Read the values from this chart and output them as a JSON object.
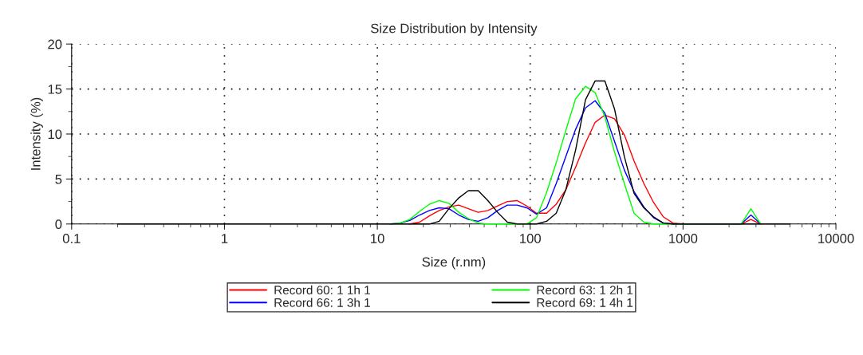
{
  "chart_data": {
    "type": "line",
    "title": "Size Distribution by Intensity",
    "xlabel": "Size (r.nm)",
    "ylabel": "Intensity (%)",
    "x": [
      0.2,
      0.232,
      0.268,
      0.311,
      0.36,
      0.417,
      0.483,
      0.559,
      0.648,
      0.75,
      0.868,
      1.005,
      1.16,
      1.35,
      1.56,
      1.81,
      2.09,
      2.43,
      2.81,
      3.25,
      3.77,
      4.36,
      5.05,
      5.85,
      6.78,
      7.85,
      9.09,
      10.5,
      12.2,
      14.1,
      16.3,
      18.9,
      21.9,
      25.4,
      29.4,
      34.1,
      39.4,
      45.7,
      52.9,
      61.2,
      70.9,
      82.1,
      95.1,
      110,
      128,
      148,
      171,
      198,
      230,
      266,
      308,
      356,
      413,
      478,
      554,
      641,
      743,
      860,
      996,
      1150,
      1340,
      1550,
      1790,
      2070,
      2400,
      2780,
      3220,
      3730,
      4320,
      5000
    ],
    "series": [
      {
        "name": "Record 60: 1 1h 1",
        "color": "#ff0000",
        "values": [
          null,
          null,
          null,
          null,
          null,
          null,
          null,
          null,
          null,
          null,
          null,
          null,
          null,
          null,
          null,
          null,
          null,
          null,
          null,
          null,
          null,
          null,
          null,
          null,
          null,
          null,
          null,
          null,
          null,
          null,
          0,
          0.2,
          0.9,
          1.5,
          1.9,
          2.1,
          1.7,
          1.3,
          1.5,
          2.0,
          2.5,
          2.6,
          2.0,
          1.2,
          1.2,
          2.2,
          3.8,
          6.3,
          9.0,
          11.3,
          12.1,
          11.7,
          9.9,
          7.0,
          4.5,
          2.4,
          0.8,
          0.1,
          0,
          null,
          null,
          null,
          null,
          null,
          0,
          0.5,
          0,
          null,
          null,
          null
        ]
      },
      {
        "name": "Record 66: 1 3h 1",
        "color": "#0000ff",
        "values": [
          null,
          null,
          null,
          null,
          null,
          null,
          null,
          null,
          null,
          null,
          null,
          null,
          null,
          null,
          null,
          null,
          null,
          null,
          null,
          null,
          null,
          null,
          null,
          null,
          null,
          null,
          null,
          null,
          0,
          0.1,
          0.4,
          1.0,
          1.5,
          1.8,
          1.7,
          1.0,
          0.5,
          0.3,
          0.7,
          1.5,
          2.1,
          2.1,
          1.8,
          1.1,
          1.8,
          4.5,
          7.5,
          10.5,
          12.9,
          13.7,
          12.3,
          9.2,
          6.0,
          3.6,
          1.9,
          0.7,
          0.1,
          0,
          null,
          null,
          null,
          null,
          null,
          null,
          0,
          1.0,
          0,
          null,
          null,
          null
        ]
      },
      {
        "name": "Record 63: 1 2h 1",
        "color": "#00ff00",
        "values": [
          null,
          null,
          null,
          null,
          null,
          null,
          null,
          null,
          null,
          null,
          null,
          null,
          null,
          null,
          null,
          null,
          null,
          null,
          null,
          null,
          null,
          null,
          null,
          null,
          null,
          null,
          null,
          null,
          0,
          0.1,
          0.5,
          1.4,
          2.2,
          2.6,
          2.3,
          1.3,
          0.6,
          0.1,
          0,
          0,
          0,
          0,
          0,
          0.7,
          3.5,
          6.8,
          10.4,
          13.9,
          15.3,
          14.6,
          11.9,
          8.0,
          4.5,
          1.2,
          0.2,
          0,
          null,
          null,
          null,
          null,
          null,
          null,
          null,
          null,
          0,
          1.7,
          0,
          null,
          null,
          null
        ]
      },
      {
        "name": "Record 69: 1 4h 1",
        "color": "#000000",
        "values": [
          0,
          0,
          0,
          0,
          0,
          0,
          0,
          0,
          0,
          0,
          0,
          0,
          0,
          0,
          0,
          0,
          0,
          0,
          0,
          0,
          0,
          0,
          0,
          0,
          0,
          0,
          0,
          0,
          0,
          0,
          0,
          0,
          0,
          0.3,
          1.7,
          2.9,
          3.7,
          3.7,
          2.6,
          1.3,
          0.2,
          0,
          0,
          0,
          0.3,
          1.2,
          3.8,
          8.2,
          13.8,
          15.9,
          15.9,
          12.8,
          7.5,
          3.4,
          1.8,
          0.8,
          0.1,
          0,
          0,
          0,
          0,
          0,
          0,
          0,
          0,
          0,
          0,
          0,
          0,
          0
        ]
      }
    ],
    "log": "x",
    "xlim": [
      0.1,
      10000
    ],
    "xticks": [
      0.1,
      1,
      10,
      100,
      1000,
      10000
    ],
    "ylim": [
      0,
      20
    ],
    "yticks": [
      0,
      5,
      10,
      15,
      20
    ],
    "grid": true,
    "legend": "bottom",
    "line_style": "solid",
    "marker": "none"
  }
}
